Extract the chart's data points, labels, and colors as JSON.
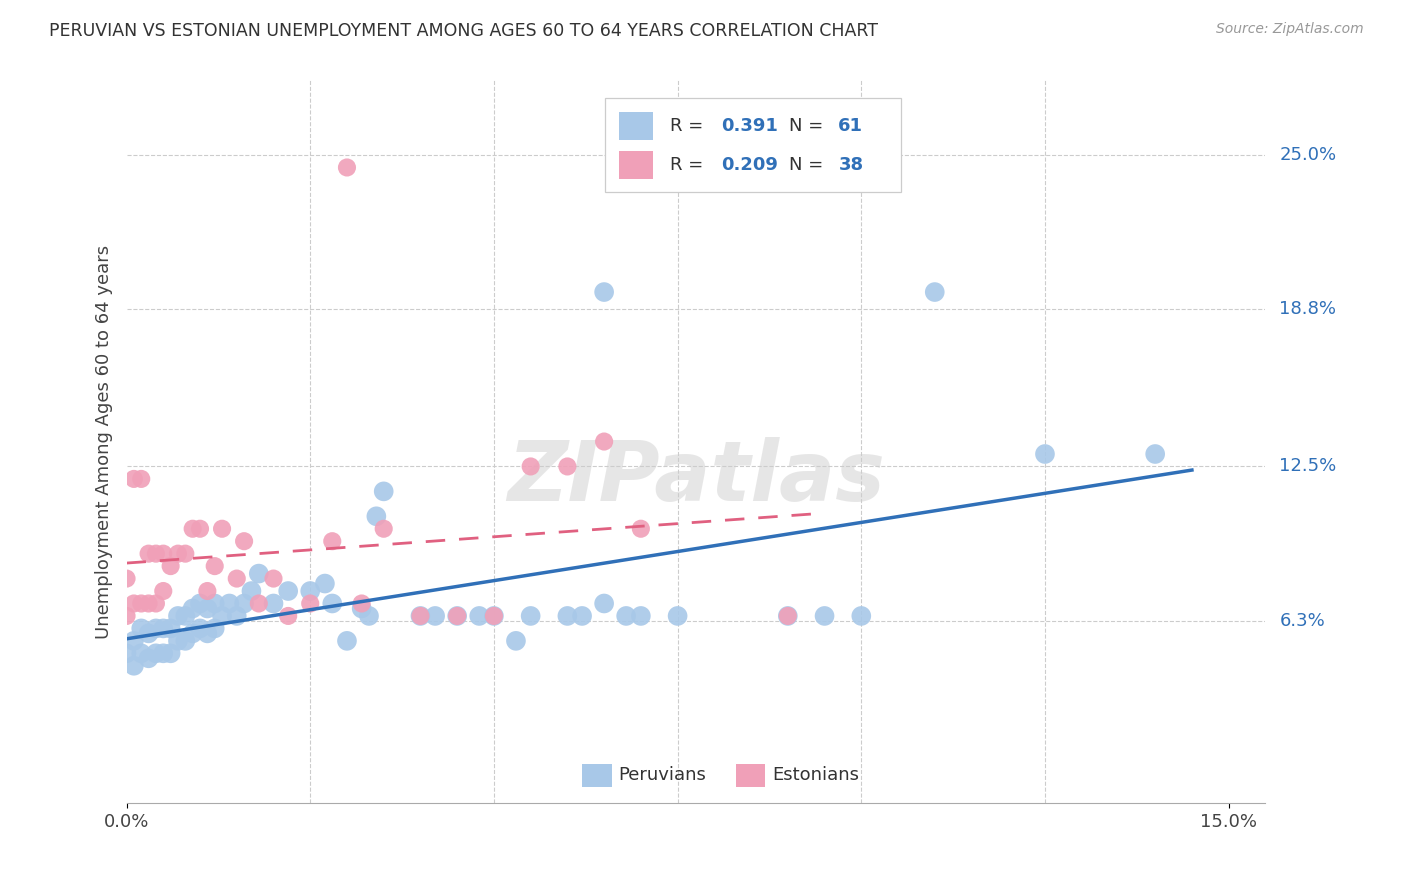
{
  "title": "PERUVIAN VS ESTONIAN UNEMPLOYMENT AMONG AGES 60 TO 64 YEARS CORRELATION CHART",
  "source": "Source: ZipAtlas.com",
  "ylabel": "Unemployment Among Ages 60 to 64 years",
  "peruvian_color": "#a8c8e8",
  "estonian_color": "#f0a0b8",
  "peruvian_line_color": "#3070b8",
  "estonian_line_color": "#e06080",
  "legend_R_peru": "0.391",
  "legend_N_peru": "61",
  "legend_R_esto": "0.209",
  "legend_N_esto": "38",
  "watermark": "ZIPatlas",
  "xlim": [
    0.0,
    0.155
  ],
  "ylim": [
    -0.01,
    0.28
  ],
  "ytick_vals": [
    0.063,
    0.125,
    0.188,
    0.25
  ],
  "ytick_labels": [
    "6.3%",
    "12.5%",
    "18.8%",
    "25.0%"
  ],
  "xtick_vals": [
    0.0,
    0.15
  ],
  "xtick_labels": [
    "0.0%",
    "15.0%"
  ],
  "vgrid_vals": [
    0.025,
    0.05,
    0.075,
    0.1,
    0.125
  ],
  "peru_x": [
    0.0,
    0.001,
    0.001,
    0.002,
    0.002,
    0.003,
    0.003,
    0.004,
    0.004,
    0.005,
    0.005,
    0.006,
    0.006,
    0.007,
    0.007,
    0.008,
    0.008,
    0.009,
    0.009,
    0.01,
    0.01,
    0.011,
    0.011,
    0.012,
    0.012,
    0.013,
    0.014,
    0.015,
    0.016,
    0.017,
    0.018,
    0.02,
    0.022,
    0.025,
    0.027,
    0.028,
    0.03,
    0.032,
    0.033,
    0.034,
    0.035,
    0.04,
    0.042,
    0.045,
    0.048,
    0.05,
    0.053,
    0.055,
    0.06,
    0.062,
    0.065,
    0.065,
    0.068,
    0.07,
    0.075,
    0.09,
    0.095,
    0.1,
    0.11,
    0.125,
    0.14
  ],
  "peru_y": [
    0.05,
    0.045,
    0.055,
    0.05,
    0.06,
    0.048,
    0.058,
    0.05,
    0.06,
    0.05,
    0.06,
    0.05,
    0.06,
    0.055,
    0.065,
    0.055,
    0.065,
    0.058,
    0.068,
    0.06,
    0.07,
    0.058,
    0.068,
    0.06,
    0.07,
    0.065,
    0.07,
    0.065,
    0.07,
    0.075,
    0.082,
    0.07,
    0.075,
    0.075,
    0.078,
    0.07,
    0.055,
    0.068,
    0.065,
    0.105,
    0.115,
    0.065,
    0.065,
    0.065,
    0.065,
    0.065,
    0.055,
    0.065,
    0.065,
    0.065,
    0.195,
    0.07,
    0.065,
    0.065,
    0.065,
    0.065,
    0.065,
    0.065,
    0.195,
    0.13,
    0.13
  ],
  "esto_x": [
    0.0,
    0.0,
    0.001,
    0.001,
    0.002,
    0.002,
    0.003,
    0.003,
    0.004,
    0.004,
    0.005,
    0.005,
    0.006,
    0.007,
    0.008,
    0.009,
    0.01,
    0.011,
    0.012,
    0.013,
    0.015,
    0.016,
    0.018,
    0.02,
    0.022,
    0.025,
    0.028,
    0.03,
    0.032,
    0.035,
    0.04,
    0.045,
    0.05,
    0.055,
    0.06,
    0.065,
    0.07,
    0.09
  ],
  "esto_y": [
    0.065,
    0.08,
    0.07,
    0.12,
    0.07,
    0.12,
    0.07,
    0.09,
    0.07,
    0.09,
    0.075,
    0.09,
    0.085,
    0.09,
    0.09,
    0.1,
    0.1,
    0.075,
    0.085,
    0.1,
    0.08,
    0.095,
    0.07,
    0.08,
    0.065,
    0.07,
    0.095,
    0.245,
    0.07,
    0.1,
    0.065,
    0.065,
    0.065,
    0.125,
    0.125,
    0.135,
    0.1,
    0.065
  ]
}
